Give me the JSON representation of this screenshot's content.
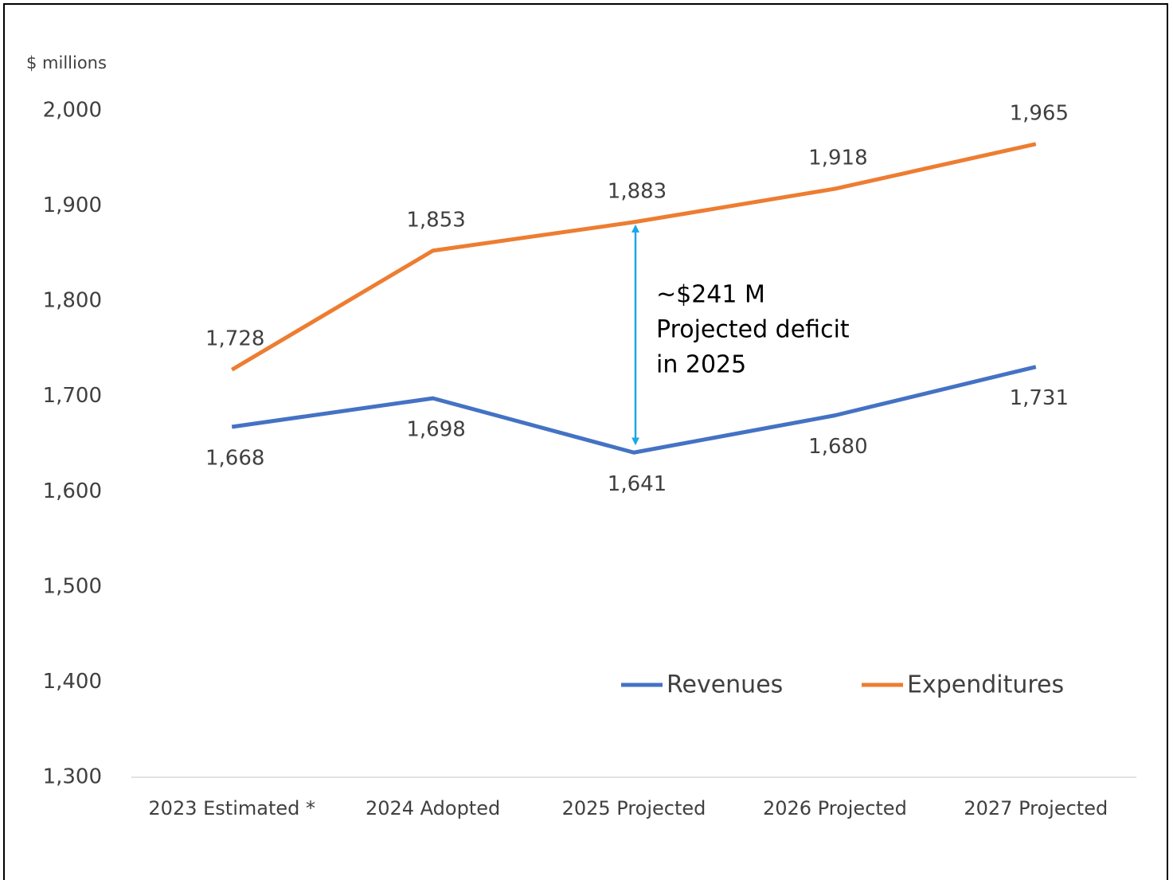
{
  "chart_data": {
    "type": "line",
    "y_axis_label": "$ millions",
    "categories": [
      "2023 Estimated *",
      "2024 Adopted",
      "2025 Projected",
      "2026 Projected",
      "2027 Projected"
    ],
    "series": [
      {
        "name": "Revenues",
        "color": "#4472c4",
        "values": [
          1668,
          1698,
          1641,
          1680,
          1731
        ],
        "value_labels": [
          "1,668",
          "1,698",
          "1,641",
          "1,680",
          "1,731"
        ]
      },
      {
        "name": "Expenditures",
        "color": "#ed7d31",
        "values": [
          1728,
          1853,
          1883,
          1918,
          1965
        ],
        "value_labels": [
          "1,728",
          "1,853",
          "1,883",
          "1,918",
          "1,965"
        ]
      }
    ],
    "ylim": [
      1300,
      2000
    ],
    "yticks": [
      {
        "value": 1300,
        "label": "1,300"
      },
      {
        "value": 1400,
        "label": "1,400"
      },
      {
        "value": 1500,
        "label": "1,500"
      },
      {
        "value": 1600,
        "label": "1,600"
      },
      {
        "value": 1700,
        "label": "1,700"
      },
      {
        "value": 1800,
        "label": "1,800"
      },
      {
        "value": 1900,
        "label": "1,900"
      },
      {
        "value": 2000,
        "label": "2,000"
      }
    ],
    "annotation": [
      "~$241 M",
      "Projected deficit",
      "in 2025"
    ],
    "grid": false,
    "legend_position": "lower right"
  }
}
